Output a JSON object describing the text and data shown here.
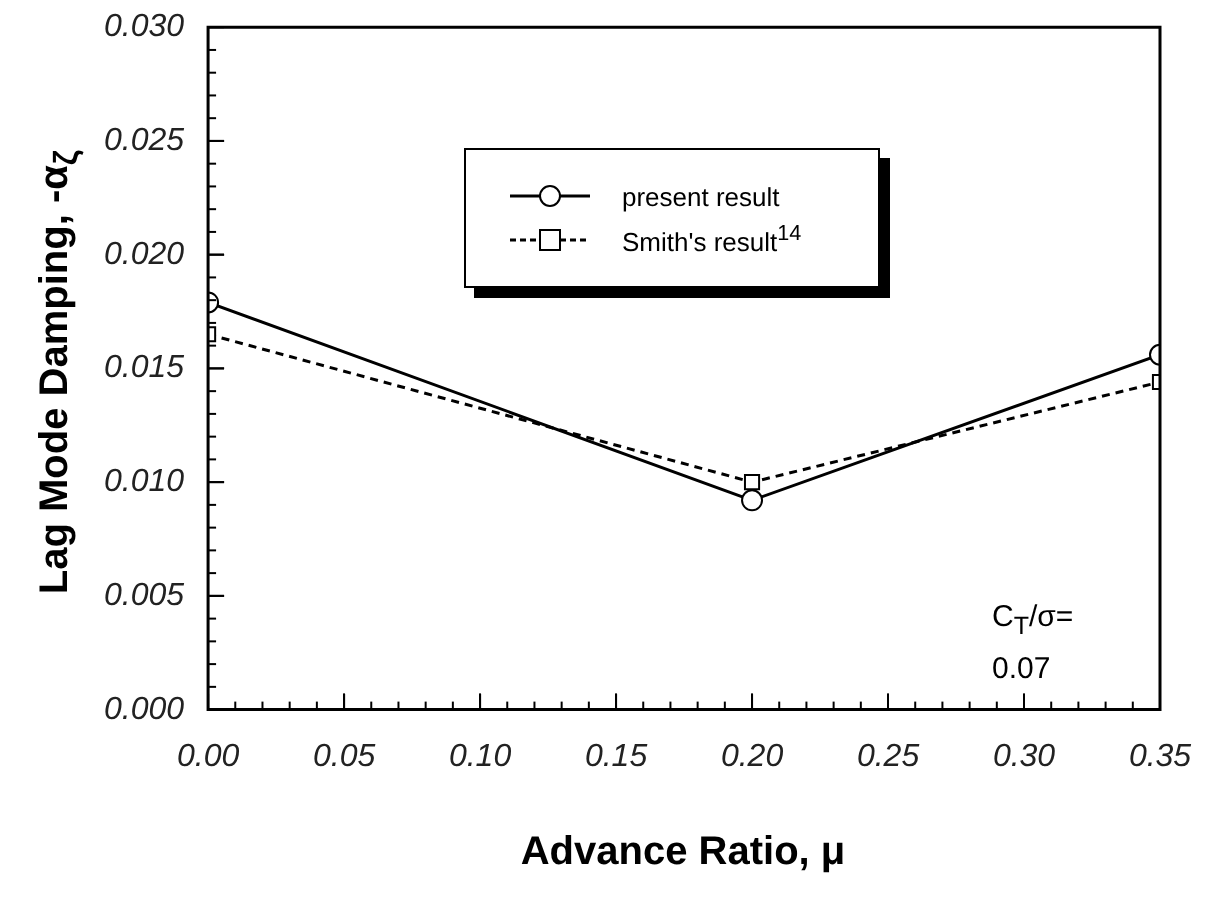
{
  "chart_data": {
    "type": "line",
    "xlabel": "Advance Ratio, μ",
    "ylabel": "Lag Mode Damping, -α$_{ζ}$",
    "xlim": [
      0,
      0.35
    ],
    "xticks": [
      {
        "value": 0,
        "label": "0.00"
      },
      {
        "value": 0.05,
        "label": "0.05"
      },
      {
        "value": 0.1,
        "label": "0.10"
      },
      {
        "value": 0.15,
        "label": "0.15"
      },
      {
        "value": 0.2,
        "label": "0.20"
      },
      {
        "value": 0.25,
        "label": "0.25"
      },
      {
        "value": 0.3,
        "label": "0.30"
      },
      {
        "value": 0.35,
        "label": "0.35"
      }
    ],
    "ylim": [
      0,
      0.03
    ],
    "yticks": [
      {
        "value": 0,
        "label": "0.000"
      },
      {
        "value": 0.005,
        "label": "0.005"
      },
      {
        "value": 0.01,
        "label": "0.010"
      },
      {
        "value": 0.015,
        "label": "0.015"
      },
      {
        "value": 0.02,
        "label": "0.020"
      },
      {
        "value": 0.025,
        "label": "0.025"
      },
      {
        "value": 0.03,
        "label": "0.030"
      }
    ],
    "x": [
      0,
      0.2,
      0.35
    ],
    "series": [
      {
        "name": "present result",
        "color": "#000000",
        "marker": "circle",
        "line_style": "solid",
        "values": [
          0.0179,
          0.0092,
          0.0156
        ]
      },
      {
        "name": "Smith's result$^{14}$",
        "color": "#000000",
        "marker": "square",
        "line_style": "dashed",
        "values": [
          0.0165,
          0.01,
          0.0144
        ]
      }
    ],
    "legend": "top",
    "grid": false,
    "annotations": [
      "C$_{T}$/σ=\n0.07"
    ]
  }
}
